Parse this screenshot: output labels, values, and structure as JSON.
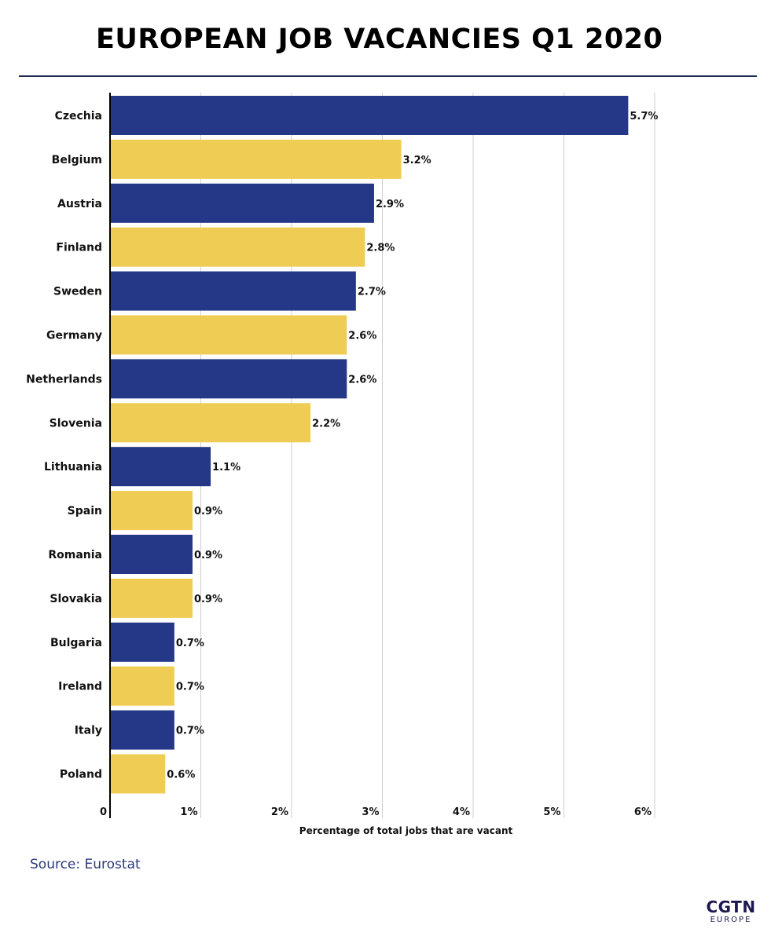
{
  "header": {
    "title": "EUROPEAN JOB VACANCIES Q1 2020"
  },
  "footer": {
    "source": "Source: Eurostat",
    "logo_main": "CGTN",
    "logo_sub": "EUROPE"
  },
  "colors": {
    "navy": "#253887",
    "yellow": "#efcd55",
    "grid": "#cfcfcf",
    "axis": "#000000",
    "rule": "#1f2a4f"
  },
  "chart_data": {
    "type": "bar",
    "orientation": "horizontal",
    "title": "EUROPEAN JOB VACANCIES Q1 2020",
    "xlabel": "Percentage of total jobs that are vacant",
    "ylabel": "",
    "xlim": [
      0,
      6
    ],
    "xticks": [
      0,
      1,
      2,
      3,
      4,
      5,
      6
    ],
    "xtick_labels": [
      "0",
      "1%",
      "2%",
      "3%",
      "4%",
      "5%",
      "6%"
    ],
    "grid": "vertical",
    "categories": [
      "Czechia",
      "Belgium",
      "Austria",
      "Finland",
      "Sweden",
      "Germany",
      "Netherlands",
      "Slovenia",
      "Lithuania",
      "Spain",
      "Romania",
      "Slovakia",
      "Bulgaria",
      "Ireland",
      "Italy",
      "Poland"
    ],
    "values": [
      5.7,
      3.2,
      2.9,
      2.8,
      2.7,
      2.6,
      2.6,
      2.2,
      1.1,
      0.9,
      0.9,
      0.9,
      0.7,
      0.7,
      0.7,
      0.6
    ],
    "value_labels": [
      "5.7%",
      "3.2%",
      "2.9%",
      "2.8%",
      "2.7%",
      "2.6%",
      "2.6%",
      "2.2%",
      "1.1%",
      "0.9%",
      "0.9%",
      "0.9%",
      "0.7%",
      "0.7%",
      "0.7%",
      "0.6%"
    ],
    "bar_colors": [
      "navy",
      "yellow",
      "navy",
      "yellow",
      "navy",
      "yellow",
      "navy",
      "yellow",
      "navy",
      "yellow",
      "navy",
      "yellow",
      "navy",
      "yellow",
      "navy",
      "yellow"
    ]
  }
}
